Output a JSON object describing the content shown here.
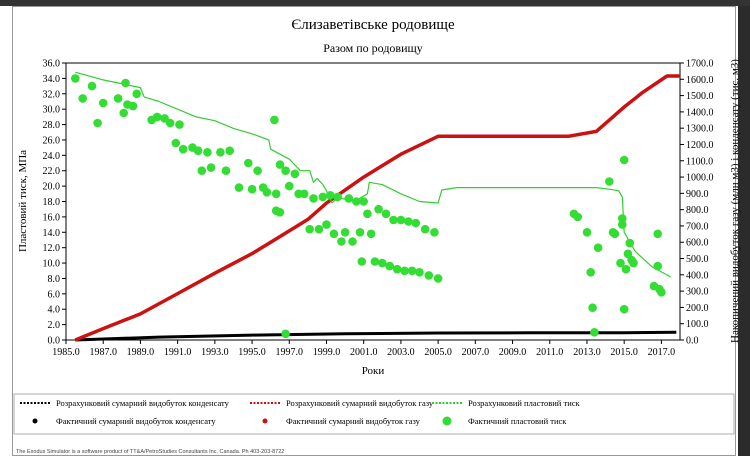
{
  "window": {
    "bar_color": "#333333"
  },
  "chart_data": {
    "type": "line",
    "title": "Єлизаветівське родовище",
    "subtitle": "Разом по родовищу",
    "xlabel": "Роки",
    "ylabel_left": "Пластовий тиск, МПа",
    "ylabel_right": "Накопичений видобуток газу (млн м3) і конденсату (тис. м3)",
    "xlim": [
      1985.0,
      2018.0
    ],
    "ylim_left": [
      0,
      36
    ],
    "ylim_right": [
      0,
      1700
    ],
    "x_ticks": [
      "1985.0",
      "1987.0",
      "1989.0",
      "1991.0",
      "1993.0",
      "1995.0",
      "1997.0",
      "1999.0",
      "2001.0",
      "2003.0",
      "2005.0",
      "2007.0",
      "2009.0",
      "2011.0",
      "2013.0",
      "2015.0",
      "2017.0"
    ],
    "y_left_ticks": [
      "0.0",
      "2.0",
      "4.0",
      "6.0",
      "8.0",
      "10.0",
      "12.0",
      "14.0",
      "16.0",
      "18.0",
      "20.0",
      "22.0",
      "24.0",
      "26.0",
      "28.0",
      "30.0",
      "32.0",
      "34.0",
      "36.0"
    ],
    "y_right_ticks": [
      "0.0",
      "100.0",
      "200.0",
      "300.0",
      "400.0",
      "500.0",
      "600.0",
      "700.0",
      "800.0",
      "900.0",
      "1000.0",
      "1100.0",
      "1200.0",
      "1300.0",
      "1400.0",
      "1500.0",
      "1600.0",
      "1700.0"
    ],
    "grid": false,
    "legend_position": "bottom",
    "series": [
      {
        "name": "Розрахунковий сумарний видобуток конденсату",
        "axis": "right",
        "style": "line",
        "color": "#000000",
        "points": [
          [
            1985.5,
            0
          ],
          [
            1990,
            18
          ],
          [
            1995,
            30
          ],
          [
            2000,
            38
          ],
          [
            2005,
            43
          ],
          [
            2010,
            44
          ],
          [
            2015,
            45
          ],
          [
            2017.8,
            47
          ]
        ]
      },
      {
        "name": "Розрахунковий сумарний видобуток газу",
        "axis": "right",
        "style": "line",
        "color": "#cc1111",
        "points": [
          [
            1985.5,
            0
          ],
          [
            1987,
            70
          ],
          [
            1989,
            160
          ],
          [
            1991,
            285
          ],
          [
            1993,
            410
          ],
          [
            1995,
            530
          ],
          [
            1996,
            600
          ],
          [
            1998,
            740
          ],
          [
            1999,
            840
          ],
          [
            2001,
            1000
          ],
          [
            2003,
            1140
          ],
          [
            2005,
            1250
          ],
          [
            2012,
            1250
          ],
          [
            2013.5,
            1280
          ],
          [
            2014.3,
            1360
          ],
          [
            2015,
            1430
          ],
          [
            2016,
            1520
          ],
          [
            2017.3,
            1620
          ],
          [
            2018,
            1620
          ]
        ]
      },
      {
        "name": "Розрахунковий пластовий тиск",
        "axis": "left",
        "style": "line",
        "color": "#33cc33",
        "points": [
          [
            1985.5,
            34.8
          ],
          [
            1987,
            33.8
          ],
          [
            1989,
            32.8
          ],
          [
            1989.2,
            31.6
          ],
          [
            1990,
            31.0
          ],
          [
            1991,
            30.0
          ],
          [
            1992,
            29.0
          ],
          [
            1993,
            28.5
          ],
          [
            1994,
            27.5
          ],
          [
            1995,
            26.8
          ],
          [
            1995.9,
            26.0
          ],
          [
            1996,
            24.8
          ],
          [
            1997,
            23.5
          ],
          [
            1997.6,
            22.0
          ],
          [
            1998.1,
            22.0
          ],
          [
            1998.3,
            20.5
          ],
          [
            1998.5,
            21.0
          ],
          [
            1998.8,
            20.2
          ],
          [
            1999,
            19.4
          ],
          [
            1999.3,
            17.8
          ],
          [
            1999.6,
            18.5
          ],
          [
            2000,
            18.3
          ],
          [
            2000.5,
            18.0
          ],
          [
            2001.2,
            19.0
          ],
          [
            2001.3,
            20.5
          ],
          [
            2002,
            20.2
          ],
          [
            2003,
            19.0
          ],
          [
            2004,
            18.0
          ],
          [
            2005,
            17.8
          ],
          [
            2005.2,
            19.5
          ],
          [
            2006,
            19.8
          ],
          [
            2013.5,
            19.8
          ],
          [
            2014.2,
            19.6
          ],
          [
            2014.7,
            19.4
          ],
          [
            2014.9,
            18.6
          ],
          [
            2015,
            14.0
          ],
          [
            2015.6,
            11.5
          ],
          [
            2016.5,
            9.5
          ],
          [
            2017.5,
            8.2
          ]
        ]
      },
      {
        "name": "Фактичний сумарний видобуток конденсату",
        "axis": "right",
        "style": "marker",
        "color": "#000000",
        "points": []
      },
      {
        "name": "Фактичний сумарний видобуток газу",
        "axis": "right",
        "style": "marker",
        "color": "#cc1111",
        "points": []
      },
      {
        "name": "Фактичний пластовий тиск",
        "axis": "left",
        "style": "marker",
        "color": "#33dd33",
        "points": [
          [
            1985.5,
            34.0
          ],
          [
            1985.9,
            31.4
          ],
          [
            1986.4,
            33.0
          ],
          [
            1986.7,
            28.2
          ],
          [
            1987.0,
            30.8
          ],
          [
            1987.8,
            31.4
          ],
          [
            1988.1,
            29.5
          ],
          [
            1988.2,
            33.4
          ],
          [
            1988.3,
            30.6
          ],
          [
            1988.6,
            30.4
          ],
          [
            1988.8,
            32.0
          ],
          [
            1989.6,
            28.6
          ],
          [
            1989.9,
            29.0
          ],
          [
            1990.3,
            28.8
          ],
          [
            1990.6,
            28.2
          ],
          [
            1990.9,
            25.6
          ],
          [
            1991.1,
            28.0
          ],
          [
            1991.3,
            24.8
          ],
          [
            1991.8,
            25.0
          ],
          [
            1992.1,
            24.6
          ],
          [
            1992.3,
            22.0
          ],
          [
            1992.6,
            24.4
          ],
          [
            1992.8,
            22.4
          ],
          [
            1993.3,
            24.4
          ],
          [
            1993.6,
            22.0
          ],
          [
            1993.8,
            24.6
          ],
          [
            1994.3,
            19.8
          ],
          [
            1994.8,
            23.0
          ],
          [
            1995.0,
            19.6
          ],
          [
            1995.3,
            22.0
          ],
          [
            1995.6,
            19.8
          ],
          [
            1995.8,
            19.2
          ],
          [
            1996.3,
            19.0
          ],
          [
            1996.5,
            22.8
          ],
          [
            1996.8,
            22.0
          ],
          [
            1997.0,
            20.0
          ],
          [
            1997.3,
            21.6
          ],
          [
            1997.5,
            19.0
          ],
          [
            1996.2,
            28.6
          ],
          [
            1996.3,
            16.8
          ],
          [
            1996.5,
            16.6
          ],
          [
            1996.8,
            0.8
          ],
          [
            1997.8,
            19.0
          ],
          [
            1998.1,
            14.4
          ],
          [
            1998.3,
            18.4
          ],
          [
            1998.6,
            14.4
          ],
          [
            1998.8,
            18.6
          ],
          [
            1999.0,
            15.0
          ],
          [
            1999.2,
            18.8
          ],
          [
            1999.4,
            13.8
          ],
          [
            1999.6,
            18.6
          ],
          [
            1999.8,
            12.8
          ],
          [
            2000.0,
            14.0
          ],
          [
            2000.2,
            18.4
          ],
          [
            2000.4,
            12.8
          ],
          [
            2000.6,
            18.0
          ],
          [
            2000.8,
            14.0
          ],
          [
            2001.0,
            18.0
          ],
          [
            2000.9,
            10.2
          ],
          [
            2001.2,
            16.4
          ],
          [
            2001.4,
            13.8
          ],
          [
            2001.6,
            10.2
          ],
          [
            2001.8,
            17.0
          ],
          [
            2002.0,
            10.0
          ],
          [
            2002.2,
            16.4
          ],
          [
            2002.4,
            9.6
          ],
          [
            2002.6,
            15.6
          ],
          [
            2002.8,
            9.2
          ],
          [
            2003.0,
            15.6
          ],
          [
            2003.2,
            9.0
          ],
          [
            2003.4,
            15.4
          ],
          [
            2003.6,
            9.0
          ],
          [
            2003.8,
            15.2
          ],
          [
            2004.0,
            8.8
          ],
          [
            2004.3,
            14.4
          ],
          [
            2004.5,
            8.4
          ],
          [
            2004.8,
            14.0
          ],
          [
            2005.0,
            8.0
          ],
          [
            2012.3,
            16.4
          ],
          [
            2012.5,
            16.0
          ],
          [
            2013.0,
            14.0
          ],
          [
            2013.2,
            8.8
          ],
          [
            2013.3,
            4.2
          ],
          [
            2013.6,
            12.0
          ],
          [
            2013.4,
            1.0
          ],
          [
            2014.2,
            20.6
          ],
          [
            2014.4,
            14.0
          ],
          [
            2014.5,
            13.8
          ],
          [
            2014.8,
            10.0
          ],
          [
            2014.9,
            15.8
          ],
          [
            2014.9,
            15.0
          ],
          [
            2015.0,
            23.4
          ],
          [
            2015.0,
            4.0
          ],
          [
            2015.1,
            9.2
          ],
          [
            2015.2,
            11.2
          ],
          [
            2015.3,
            12.6
          ],
          [
            2015.4,
            10.4
          ],
          [
            2015.5,
            10.0
          ],
          [
            2016.6,
            7.0
          ],
          [
            2016.8,
            13.8
          ],
          [
            2016.9,
            6.6
          ],
          [
            2017.0,
            6.2
          ],
          [
            2016.8,
            9.6
          ]
        ]
      }
    ]
  },
  "footer": {
    "copyright": "The Exodus Simulator is a software product of TT&A/PetroStudies Consultants Inc. Canada. Ph 403-203-8722"
  }
}
